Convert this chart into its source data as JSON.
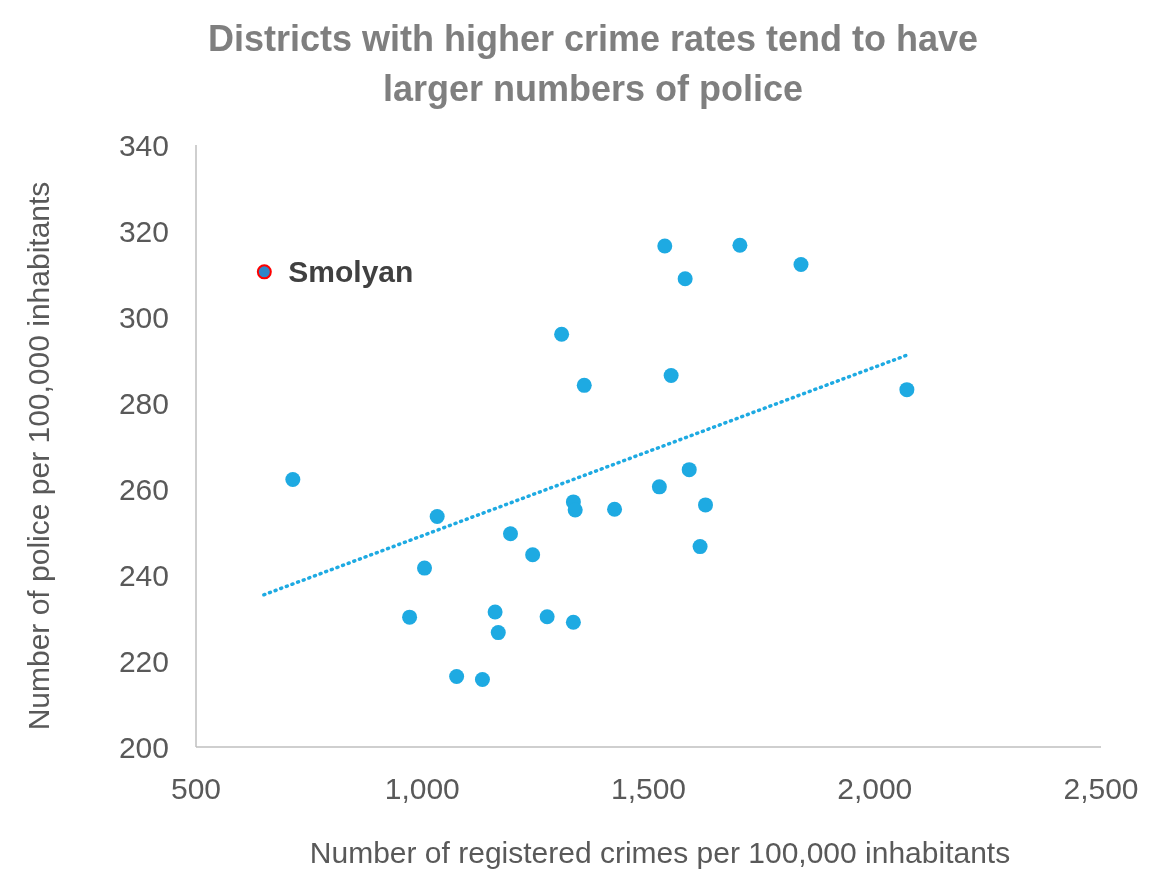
{
  "chart_data": {
    "type": "scatter",
    "title": "Districts with higher crime rates tend to have larger numbers of police",
    "xlabel": "Number of registered crimes per 100,000 inhabitants",
    "ylabel": "Number of police per 100,000 inhabitants",
    "xlim": [
      500,
      2500
    ],
    "xticks": [
      {
        "value": 500,
        "label": "500"
      },
      {
        "value": 1000,
        "label": "1,000"
      },
      {
        "value": 1500,
        "label": "1,500"
      },
      {
        "value": 2000,
        "label": "2,000"
      },
      {
        "value": 2500,
        "label": "2,500"
      }
    ],
    "ylim": [
      200,
      340
    ],
    "yticks": [
      200,
      220,
      240,
      260,
      280,
      300,
      320,
      340
    ],
    "grid": false,
    "marker": "circle",
    "series": [
      {
        "color": "#1eaae2",
        "x": [
          714,
          1033,
          1005,
          972,
          1195,
          1244,
          1161,
          1168,
          1076,
          1133,
          1276,
          1334,
          1308,
          1358,
          1334,
          1338,
          1425,
          1524,
          1536,
          1702,
          1581,
          1837,
          1550,
          2071,
          1590,
          1626,
          1614
        ],
        "values": [
          262.2,
          253.6,
          241.6,
          230.2,
          249.6,
          244.7,
          231.4,
          226.6,
          216.4,
          215.7,
          230.3,
          229.0,
          296.0,
          284.1,
          257.0,
          255.1,
          255.3,
          260.5,
          316.5,
          316.7,
          308.9,
          312.2,
          286.4,
          283.1,
          264.5,
          256.3,
          246.6
        ]
      },
      {
        "name": "Smolyan",
        "color": "#2e86c9",
        "x": [
          651
        ],
        "values": [
          310.5
        ]
      },
      {
        "type": "line",
        "color": "#1eaae2",
        "line_style": "dotted",
        "marker": "none",
        "x": [
          650,
          2073
        ],
        "values": [
          235.4,
          291.2
        ]
      }
    ]
  }
}
